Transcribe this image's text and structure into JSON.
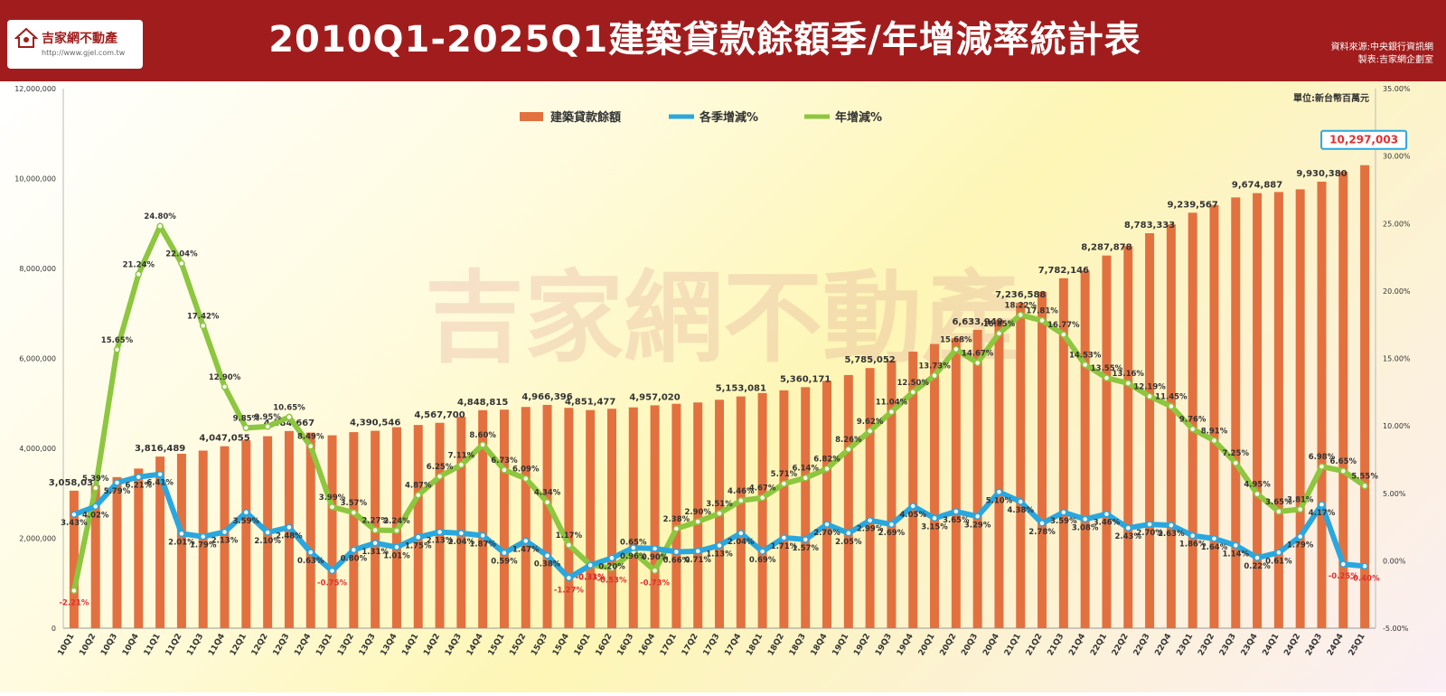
{
  "header": {
    "logo_name": "吉家網不動產",
    "logo_url": "http://www.gjel.com.tw",
    "title": "2010Q1-2025Q1建築貸款餘額季/年增減率統計表",
    "source_line1": "資料來源:中央銀行資訊網",
    "source_line2": "製表:吉家網企劃室"
  },
  "colors": {
    "header_bg": "#a11d1d",
    "bar": "#e2713f",
    "qoq": "#2aa7de",
    "yoy": "#8dc63f",
    "negative": "#e03030",
    "callout": "#e03030"
  },
  "watermark": "吉家網不動產",
  "chart_data": {
    "type": "bar",
    "unit_label": "單位:新台幣百萬元",
    "categories": [
      "10Q1",
      "10Q2",
      "10Q3",
      "10Q4",
      "11Q1",
      "11Q2",
      "11Q3",
      "11Q4",
      "12Q1",
      "12Q2",
      "12Q3",
      "12Q4",
      "13Q1",
      "13Q2",
      "13Q3",
      "13Q4",
      "14Q1",
      "14Q2",
      "14Q3",
      "14Q4",
      "15Q1",
      "15Q2",
      "15Q3",
      "15Q4",
      "16Q1",
      "16Q2",
      "16Q3",
      "16Q4",
      "17Q1",
      "17Q2",
      "17Q3",
      "17Q4",
      "18Q1",
      "18Q2",
      "18Q3",
      "18Q4",
      "19Q1",
      "19Q2",
      "19Q3",
      "19Q4",
      "20Q1",
      "20Q2",
      "20Q3",
      "20Q4",
      "21Q1",
      "21Q2",
      "21Q3",
      "21Q4",
      "22Q1",
      "22Q2",
      "22Q3",
      "22Q4",
      "23Q1",
      "23Q2",
      "23Q3",
      "23Q4",
      "24Q1",
      "24Q2",
      "24Q3",
      "24Q4",
      "25Q1"
    ],
    "legend": [
      "建築貸款餘額",
      "各季增減%",
      "年增減%"
    ],
    "legend_position": "top-center",
    "y_left": {
      "min": 0,
      "max": 12000000,
      "ticks": [
        "0",
        "2,000,000",
        "4,000,000",
        "6,000,000",
        "8,000,000",
        "10,000,000",
        "12,000,000"
      ]
    },
    "y_right": {
      "min": -5,
      "max": 35,
      "ticks": [
        "-5.00%",
        "0.00%",
        "5.00%",
        "10.00%",
        "15.00%",
        "20.00%",
        "25.00%",
        "30.00%",
        "35.00%"
      ]
    },
    "grid": false,
    "series": [
      {
        "name": "建築貸款餘額",
        "axis": "left",
        "values": [
          3058031,
          3180000,
          3360000,
          3550000,
          3816489,
          3880000,
          3950000,
          4047055,
          4180000,
          4270000,
          4384667,
          4350000,
          4290000,
          4360000,
          4390546,
          4470000,
          4520000,
          4567700,
          4700000,
          4848815,
          4860000,
          4920000,
          4966396,
          4900000,
          4851477,
          4880000,
          4910000,
          4957020,
          4990000,
          5020000,
          5080000,
          5153081,
          5230000,
          5290000,
          5360171,
          5500000,
          5630000,
          5785052,
          5950000,
          6150000,
          6320000,
          6450000,
          6633949,
          6850000,
          7236588,
          7480000,
          7782146,
          7950000,
          8287878,
          8500000,
          8783333,
          8980000,
          9239567,
          9410000,
          9580000,
          9674887,
          9700000,
          9760000,
          9930380,
          10150000,
          10297003
        ],
        "labels": {
          "0": "3,058,031",
          "4": "3,816,489",
          "7": "4,047,055",
          "10": "4,384,667",
          "14": "4,390,546",
          "17": "4,567,700",
          "19": "4,848,815",
          "22": "4,966,396",
          "24": "4,851,477",
          "27": "4,957,020",
          "31": "5,153,081",
          "34": "5,360,171",
          "37": "5,785,052",
          "42": "6,633,949",
          "44": "7,236,588",
          "46": "7,782,146",
          "48": "8,287,878",
          "50": "8,783,333",
          "52": "9,239,567",
          "55": "9,674,887",
          "58": "9,930,380"
        },
        "callout": {
          "index": 60,
          "text": "10,297,003"
        }
      },
      {
        "name": "各季增減%",
        "axis": "right",
        "values": [
          3.43,
          4.02,
          5.79,
          6.21,
          6.41,
          2.01,
          1.79,
          2.13,
          3.59,
          2.1,
          2.48,
          0.63,
          -0.75,
          0.8,
          1.31,
          1.01,
          1.75,
          2.13,
          2.04,
          1.87,
          0.59,
          1.47,
          0.38,
          -1.27,
          -0.33,
          0.2,
          0.96,
          0.9,
          0.66,
          0.71,
          1.13,
          2.04,
          0.69,
          1.71,
          1.57,
          2.7,
          2.05,
          2.99,
          2.69,
          4.05,
          3.15,
          3.65,
          3.29,
          5.1,
          4.38,
          2.78,
          3.59,
          3.08,
          3.46,
          2.43,
          2.7,
          2.63,
          1.86,
          1.64,
          1.14,
          0.22,
          0.61,
          1.79,
          4.17,
          -0.25,
          -0.4
        ],
        "labels": [
          "3.43%",
          "4.02%",
          "5.79%",
          "6.21%",
          "6.41%",
          "2.01%",
          "1.79%",
          "2.13%",
          "3.59%",
          "2.10%",
          "2.48%",
          "0.63%",
          "-0.75%",
          "0.80%",
          "1.31%",
          "1.01%",
          "1.75%",
          "2.13%",
          "2.04%",
          "1.87%",
          "0.59%",
          "1.47%",
          "0.38%",
          "-1.27%",
          "-0.33%",
          "0.20%",
          "0.96%",
          "0.90%",
          "0.66%",
          "0.71%",
          "1.13%",
          "2.04%",
          "0.69%",
          "1.71%",
          "1.57%",
          "2.70%",
          "2.05%",
          "2.99%",
          "2.69%",
          "4.05%",
          "3.15%",
          "3.65%",
          "3.29%",
          "5.10%",
          "4.38%",
          "2.78%",
          "3.59%",
          "3.08%",
          "3.46%",
          "2.43%",
          "2.70%",
          "2.63%",
          "1.86%",
          "1.64%",
          "1.14%",
          "0.22%",
          "0.61%",
          "1.79%",
          "4.17%",
          "-0.25%",
          "-0.40%"
        ]
      },
      {
        "name": "年增減%",
        "axis": "right",
        "values": [
          -2.21,
          5.39,
          15.65,
          21.24,
          24.8,
          22.04,
          17.42,
          12.9,
          9.85,
          9.95,
          10.65,
          8.49,
          3.99,
          3.57,
          2.27,
          2.24,
          4.87,
          6.25,
          7.11,
          8.6,
          6.73,
          6.09,
          4.34,
          1.17,
          -0.31,
          -0.53,
          0.65,
          -0.73,
          2.38,
          2.9,
          3.51,
          4.46,
          4.67,
          5.71,
          6.14,
          6.82,
          8.26,
          9.62,
          11.04,
          12.5,
          13.73,
          15.68,
          14.67,
          16.85,
          18.22,
          17.81,
          16.77,
          14.53,
          13.55,
          13.16,
          12.19,
          11.45,
          9.76,
          8.91,
          7.25,
          4.95,
          3.65,
          3.81,
          6.98,
          6.65,
          5.55
        ],
        "labels": [
          "-2.21%",
          "5.39%",
          "15.65%",
          "21.24%",
          "24.80%",
          "22.04%",
          "17.42%",
          "12.90%",
          "9.85%",
          "9.95%",
          "10.65%",
          "8.49%",
          "3.99%",
          "3.57%",
          "2.27%",
          "2.24%",
          "4.87%",
          "6.25%",
          "7.11%",
          "8.60%",
          "6.73%",
          "6.09%",
          "4.34%",
          "1.17%",
          "-0.31%",
          "-0.53%",
          "0.65%",
          "-0.73%",
          "2.38%",
          "2.90%",
          "3.51%",
          "4.46%",
          "4.67%",
          "5.71%",
          "6.14%",
          "6.82%",
          "8.26%",
          "9.62%",
          "11.04%",
          "12.50%",
          "13.73%",
          "15.68%",
          "14.67%",
          "16.85%",
          "18.22%",
          "17.81%",
          "16.77%",
          "14.53%",
          "13.55%",
          "13.16%",
          "12.19%",
          "11.45%",
          "9.76%",
          "8.91%",
          "7.25%",
          "4.95%",
          "3.65%",
          "3.81%",
          "6.98%",
          "6.65%",
          "5.55%"
        ]
      }
    ]
  }
}
